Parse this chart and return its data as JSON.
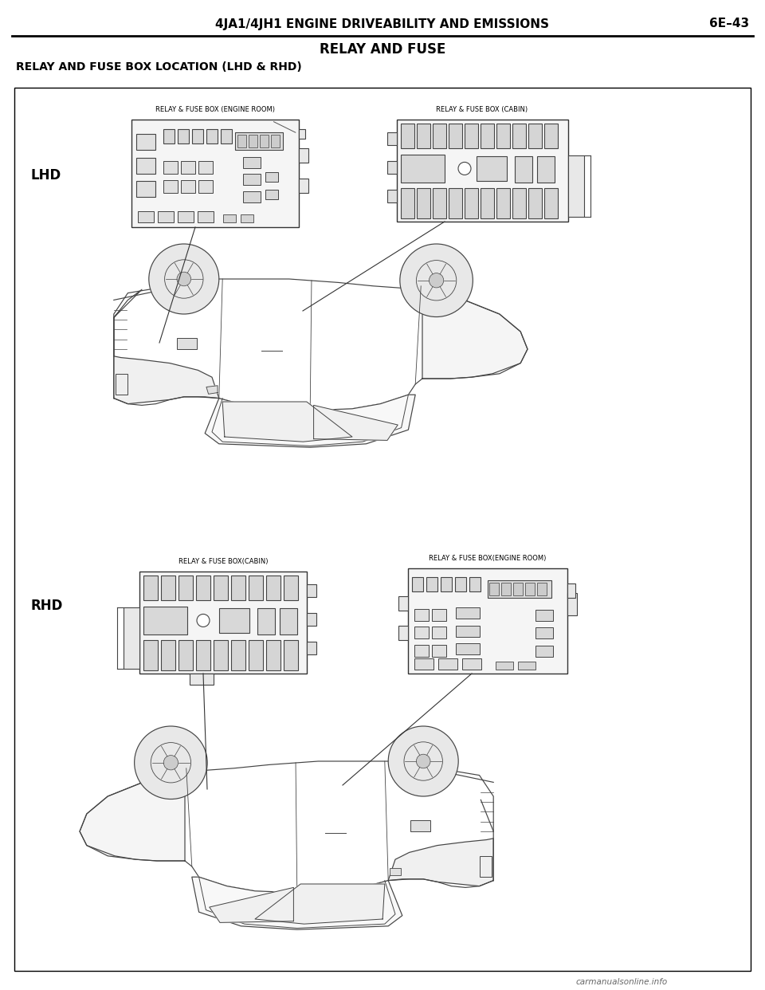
{
  "page_title": "4JA1/4JH1 ENGINE DRIVEABILITY AND EMISSIONS",
  "page_number": "6E–43",
  "section_title": "RELAY AND FUSE",
  "subsection_title": "RELAY AND FUSE BOX LOCATION (LHD & RHD)",
  "lhd_label": "LHD",
  "rhd_label": "RHD",
  "lhd_engine_label": "RELAY & FUSE BOX (ENGINE ROOM)",
  "lhd_cabin_label": "RELAY & FUSE BOX (CABIN)",
  "rhd_cabin_label": "RELAY & FUSE BOX(CABIN)",
  "rhd_engine_label": "RELAY & FUSE BOX(ENGINE ROOM)",
  "watermark": "carmanualsonline.info",
  "bg_color": "#ffffff",
  "text_color": "#000000"
}
